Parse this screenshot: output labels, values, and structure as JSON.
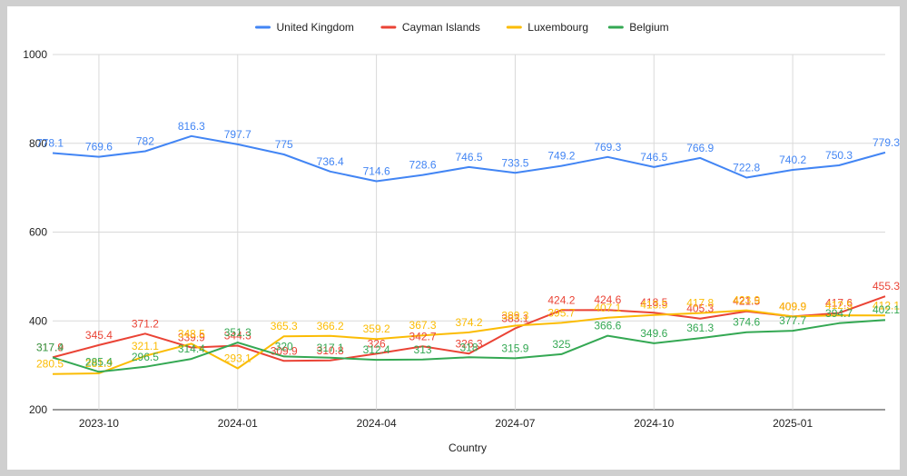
{
  "chart_data": {
    "type": "line",
    "title": "",
    "xlabel": "Country",
    "ylabel": "",
    "ylim": [
      200,
      1000
    ],
    "yticks": [
      200,
      400,
      600,
      800,
      1000
    ],
    "grid": true,
    "legend_position": "top",
    "x": [
      "2023-09",
      "2023-10",
      "2023-11",
      "2023-12",
      "2024-01",
      "2024-02",
      "2024-03",
      "2024-04",
      "2024-05",
      "2024-06",
      "2024-07",
      "2024-08",
      "2024-09",
      "2024-10",
      "2024-11",
      "2024-12",
      "2025-01",
      "2025-02",
      "2025-03"
    ],
    "xtick_labels": [
      {
        "index": 1,
        "label": "2023-10"
      },
      {
        "index": 4,
        "label": "2024-01"
      },
      {
        "index": 7,
        "label": "2024-04"
      },
      {
        "index": 10,
        "label": "2024-07"
      },
      {
        "index": 13,
        "label": "2024-10"
      },
      {
        "index": 16,
        "label": "2025-01"
      }
    ],
    "series": [
      {
        "name": "United Kingdom",
        "color": "#4285f4",
        "values": [
          778.1,
          769.6,
          782,
          816.3,
          797.7,
          775,
          736.4,
          714.6,
          728.6,
          746.5,
          733.5,
          749.2,
          769.3,
          746.5,
          766.9,
          722.8,
          740.2,
          750.3,
          779.3
        ]
      },
      {
        "name": "Cayman Islands",
        "color": "#ea4335",
        "values": [
          317.9,
          345.4,
          371.2,
          339.9,
          344.3,
          309.9,
          310.8,
          326,
          342.7,
          326.3,
          383.1,
          424.2,
          424.6,
          418.5,
          405.3,
          421.5,
          409.9,
          417.6,
          455.3
        ]
      },
      {
        "name": "Luxembourg",
        "color": "#fbbc04",
        "values": [
          280.5,
          281.9,
          321.1,
          348.5,
          293.1,
          365.3,
          366.2,
          359.2,
          367.3,
          374.2,
          389.3,
          395.7,
          407.1,
          413.5,
          417.8,
          423.9,
          409.9,
          412.5,
          412.1
        ]
      },
      {
        "name": "Belgium",
        "color": "#34a853",
        "values": [
          317.4,
          285.4,
          296.5,
          314.4,
          351.3,
          320,
          317.1,
          312.4,
          313,
          318,
          315.9,
          325,
          366.6,
          349.6,
          361.3,
          374.6,
          377.7,
          394.7,
          402.1
        ]
      }
    ]
  }
}
